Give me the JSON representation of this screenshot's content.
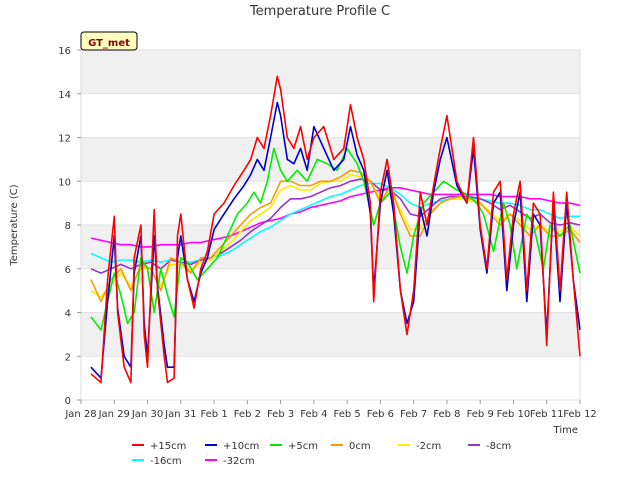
{
  "chart_data": {
    "type": "line",
    "title": "Temperature Profile C",
    "xlabel": "Time",
    "ylabel": "Temperature (C)",
    "site_badge": "GT_met",
    "ylim": [
      0,
      16
    ],
    "yticks": [
      0,
      2,
      4,
      6,
      8,
      10,
      12,
      14,
      16
    ],
    "xlim_days": [
      0,
      15
    ],
    "xtick_labels": [
      "Jan 28",
      "Jan 29",
      "Jan 30",
      "Jan 31",
      "Feb 1",
      "Feb 2",
      "Feb 3",
      "Feb 4",
      "Feb 5",
      "Feb 6",
      "Feb 7",
      "Feb 8",
      "Feb 9",
      "Feb 10",
      "Feb 11",
      "Feb 12"
    ],
    "grid": true,
    "legend_position": "bottom",
    "series": [
      {
        "name": "+15cm",
        "color": "#ff0000",
        "x": [
          0.3,
          0.6,
          0.8,
          1.0,
          1.1,
          1.3,
          1.5,
          1.6,
          1.8,
          1.9,
          2.0,
          2.2,
          2.3,
          2.5,
          2.6,
          2.8,
          2.9,
          3.0,
          3.2,
          3.4,
          3.6,
          3.8,
          4.0,
          4.3,
          4.6,
          4.9,
          5.1,
          5.3,
          5.5,
          5.7,
          5.9,
          6.0,
          6.2,
          6.4,
          6.6,
          6.8,
          7.0,
          7.3,
          7.6,
          7.9,
          8.1,
          8.3,
          8.5,
          8.7,
          8.8,
          9.0,
          9.2,
          9.4,
          9.6,
          9.8,
          10.0,
          10.2,
          10.4,
          10.6,
          10.8,
          11.0,
          11.3,
          11.6,
          11.8,
          12.0,
          12.2,
          12.4,
          12.6,
          12.8,
          13.0,
          13.2,
          13.4,
          13.6,
          13.8,
          14.0,
          14.2,
          14.4,
          14.6,
          14.8,
          15.0
        ],
        "y": [
          1.2,
          0.8,
          5.5,
          8.4,
          4.0,
          1.5,
          0.8,
          6.5,
          8.0,
          3.0,
          1.5,
          8.7,
          5.0,
          2.0,
          0.8,
          1.0,
          7.5,
          8.5,
          5.5,
          4.2,
          6.0,
          6.8,
          8.5,
          9.0,
          9.8,
          10.5,
          11.0,
          12.0,
          11.5,
          13.0,
          14.8,
          14.2,
          12.0,
          11.5,
          12.5,
          11.0,
          12.0,
          12.5,
          11.0,
          11.5,
          13.5,
          12.0,
          11.0,
          9.0,
          4.5,
          9.5,
          11.0,
          9.0,
          5.0,
          3.0,
          5.0,
          9.5,
          8.0,
          9.8,
          11.5,
          13.0,
          10.0,
          9.0,
          12.0,
          8.0,
          6.0,
          9.5,
          10.0,
          5.5,
          8.5,
          10.0,
          5.0,
          9.0,
          8.5,
          2.5,
          9.5,
          5.0,
          9.5,
          5.5,
          2.0
        ]
      },
      {
        "name": "+10cm",
        "color": "#0000cc",
        "x": [
          0.3,
          0.6,
          0.8,
          1.0,
          1.1,
          1.3,
          1.5,
          1.6,
          1.8,
          1.9,
          2.0,
          2.2,
          2.3,
          2.5,
          2.6,
          2.8,
          2.9,
          3.0,
          3.2,
          3.4,
          3.6,
          3.8,
          4.0,
          4.3,
          4.6,
          4.9,
          5.1,
          5.3,
          5.5,
          5.7,
          5.9,
          6.0,
          6.2,
          6.4,
          6.6,
          6.8,
          7.0,
          7.3,
          7.6,
          7.9,
          8.1,
          8.3,
          8.5,
          8.7,
          8.8,
          9.0,
          9.2,
          9.4,
          9.6,
          9.8,
          10.0,
          10.2,
          10.4,
          10.6,
          10.8,
          11.0,
          11.3,
          11.6,
          11.8,
          12.0,
          12.2,
          12.4,
          12.6,
          12.8,
          13.0,
          13.2,
          13.4,
          13.6,
          13.8,
          14.0,
          14.2,
          14.4,
          14.6,
          14.8,
          15.0
        ],
        "y": [
          1.5,
          1.0,
          4.5,
          7.5,
          4.2,
          2.0,
          1.5,
          5.8,
          7.5,
          3.5,
          2.0,
          7.5,
          5.2,
          2.5,
          1.5,
          1.5,
          6.5,
          7.5,
          5.5,
          4.5,
          5.8,
          6.5,
          7.8,
          8.5,
          9.2,
          9.8,
          10.3,
          11.0,
          10.5,
          12.0,
          13.6,
          13.0,
          11.0,
          10.8,
          11.5,
          10.5,
          12.5,
          11.5,
          10.5,
          11.0,
          12.5,
          11.2,
          10.5,
          8.5,
          5.0,
          9.0,
          10.5,
          8.5,
          5.0,
          3.5,
          4.5,
          8.8,
          7.5,
          9.5,
          11.0,
          12.0,
          9.8,
          9.0,
          11.5,
          7.8,
          5.8,
          9.0,
          9.5,
          5.0,
          8.0,
          9.5,
          4.5,
          8.5,
          8.0,
          3.0,
          9.0,
          4.5,
          9.0,
          5.5,
          3.2
        ]
      },
      {
        "name": "+5cm",
        "color": "#00ee00",
        "x": [
          0.3,
          0.6,
          0.8,
          1.0,
          1.2,
          1.4,
          1.6,
          1.8,
          2.0,
          2.2,
          2.4,
          2.6,
          2.8,
          3.0,
          3.2,
          3.5,
          3.8,
          4.1,
          4.4,
          4.7,
          5.0,
          5.2,
          5.4,
          5.6,
          5.8,
          6.0,
          6.2,
          6.5,
          6.8,
          7.1,
          7.4,
          7.7,
          8.0,
          8.3,
          8.5,
          8.8,
          9.0,
          9.3,
          9.6,
          9.8,
          10.0,
          10.3,
          10.6,
          10.9,
          11.1,
          11.3,
          11.6,
          11.9,
          12.1,
          12.4,
          12.7,
          12.9,
          13.1,
          13.4,
          13.6,
          13.9,
          14.1,
          14.4,
          14.7,
          15.0
        ],
        "y": [
          3.8,
          3.2,
          4.5,
          5.8,
          4.8,
          3.5,
          4.0,
          6.5,
          6.0,
          4.0,
          6.0,
          4.8,
          3.8,
          6.5,
          6.3,
          5.5,
          6.0,
          6.5,
          7.5,
          8.5,
          9.0,
          9.5,
          9.0,
          10.0,
          11.5,
          10.5,
          10.0,
          10.5,
          10.0,
          11.0,
          10.8,
          10.5,
          11.5,
          10.8,
          10.0,
          8.0,
          9.0,
          9.5,
          7.0,
          5.8,
          7.5,
          9.0,
          9.5,
          10.0,
          9.8,
          9.6,
          9.4,
          9.0,
          8.5,
          6.8,
          9.0,
          8.0,
          6.0,
          8.5,
          8.0,
          6.0,
          8.0,
          7.5,
          8.0,
          5.8
        ]
      },
      {
        "name": "0cm",
        "color": "#ff9900",
        "x": [
          0.3,
          0.6,
          0.9,
          1.2,
          1.5,
          1.8,
          2.1,
          2.4,
          2.7,
          3.0,
          3.3,
          3.6,
          3.9,
          4.2,
          4.5,
          4.8,
          5.1,
          5.4,
          5.7,
          6.0,
          6.3,
          6.6,
          6.9,
          7.2,
          7.5,
          7.8,
          8.1,
          8.4,
          8.7,
          9.0,
          9.3,
          9.6,
          9.9,
          10.2,
          10.5,
          10.8,
          11.1,
          11.4,
          11.7,
          12.0,
          12.3,
          12.6,
          12.9,
          13.2,
          13.5,
          13.8,
          14.1,
          14.4,
          14.7,
          15.0
        ],
        "y": [
          5.5,
          4.5,
          5.5,
          6.0,
          5.0,
          6.2,
          6.0,
          5.0,
          6.5,
          6.3,
          5.8,
          6.5,
          6.5,
          7.0,
          7.5,
          8.0,
          8.5,
          8.8,
          9.0,
          10.0,
          10.0,
          9.8,
          9.8,
          10.0,
          10.0,
          10.2,
          10.5,
          10.4,
          10.0,
          9.0,
          9.8,
          8.5,
          7.5,
          7.5,
          8.5,
          9.0,
          9.2,
          9.3,
          9.2,
          9.0,
          8.5,
          8.0,
          8.5,
          8.0,
          7.5,
          8.0,
          7.5,
          7.5,
          7.8,
          7.2
        ]
      },
      {
        "name": "-2cm",
        "color": "#ffee00",
        "x": [
          0.3,
          0.6,
          0.9,
          1.2,
          1.5,
          1.8,
          2.1,
          2.4,
          2.7,
          3.0,
          3.3,
          3.6,
          3.9,
          4.2,
          4.5,
          4.8,
          5.1,
          5.4,
          5.7,
          6.0,
          6.3,
          6.6,
          6.9,
          7.2,
          7.5,
          7.8,
          8.1,
          8.4,
          8.7,
          9.0,
          9.3,
          9.6,
          9.9,
          10.2,
          10.5,
          10.8,
          11.1,
          11.4,
          11.7,
          12.0,
          12.3,
          12.6,
          12.9,
          13.2,
          13.5,
          13.8,
          14.1,
          14.4,
          14.7,
          15.0
        ],
        "y": [
          5.0,
          4.7,
          5.3,
          5.8,
          5.2,
          6.0,
          6.0,
          5.2,
          6.2,
          6.2,
          5.9,
          6.3,
          6.4,
          6.8,
          7.2,
          7.7,
          8.2,
          8.5,
          8.8,
          9.6,
          9.8,
          9.6,
          9.6,
          9.9,
          10.0,
          10.0,
          10.3,
          10.2,
          10.0,
          9.2,
          9.6,
          8.7,
          7.8,
          7.8,
          8.6,
          9.0,
          9.2,
          9.2,
          9.1,
          9.0,
          8.6,
          8.2,
          8.5,
          8.2,
          7.8,
          8.0,
          7.7,
          7.7,
          7.9,
          7.5
        ]
      },
      {
        "name": "-8cm",
        "color": "#9933cc",
        "x": [
          0.3,
          0.6,
          0.9,
          1.2,
          1.5,
          1.8,
          2.1,
          2.4,
          2.7,
          3.0,
          3.3,
          3.6,
          3.9,
          4.2,
          4.5,
          4.8,
          5.1,
          5.4,
          5.7,
          6.0,
          6.3,
          6.6,
          6.9,
          7.2,
          7.5,
          7.8,
          8.1,
          8.4,
          8.7,
          9.0,
          9.3,
          9.6,
          9.9,
          10.2,
          10.5,
          10.8,
          11.1,
          11.4,
          11.7,
          12.0,
          12.3,
          12.6,
          12.9,
          13.2,
          13.5,
          13.8,
          14.1,
          14.4,
          14.7,
          15.0
        ],
        "y": [
          6.0,
          5.8,
          6.0,
          6.2,
          6.0,
          6.2,
          6.3,
          6.0,
          6.4,
          6.3,
          6.2,
          6.4,
          6.5,
          6.7,
          7.0,
          7.3,
          7.7,
          8.0,
          8.3,
          8.8,
          9.2,
          9.2,
          9.3,
          9.5,
          9.7,
          9.8,
          10.0,
          10.1,
          10.0,
          9.6,
          9.6,
          9.2,
          8.5,
          8.4,
          8.8,
          9.2,
          9.3,
          9.3,
          9.3,
          9.2,
          9.0,
          8.7,
          8.9,
          8.6,
          8.3,
          8.5,
          8.1,
          8.0,
          8.1,
          8.0
        ]
      },
      {
        "name": "-16cm",
        "color": "#00ffff",
        "x": [
          0.3,
          0.6,
          0.9,
          1.2,
          1.5,
          1.8,
          2.1,
          2.4,
          2.7,
          3.0,
          3.3,
          3.6,
          3.9,
          4.2,
          4.5,
          4.8,
          5.1,
          5.4,
          5.7,
          6.0,
          6.3,
          6.6,
          6.9,
          7.2,
          7.5,
          7.8,
          8.1,
          8.4,
          8.7,
          9.0,
          9.3,
          9.6,
          9.9,
          10.2,
          10.5,
          10.8,
          11.1,
          11.4,
          11.7,
          12.0,
          12.3,
          12.6,
          12.9,
          13.2,
          13.5,
          13.8,
          14.1,
          14.4,
          14.7,
          15.0
        ],
        "y": [
          6.7,
          6.5,
          6.3,
          6.4,
          6.4,
          6.3,
          6.4,
          6.3,
          6.4,
          6.3,
          6.3,
          6.4,
          6.5,
          6.6,
          6.8,
          7.1,
          7.4,
          7.7,
          7.9,
          8.2,
          8.5,
          8.7,
          8.9,
          9.1,
          9.3,
          9.4,
          9.6,
          9.8,
          9.9,
          9.9,
          9.7,
          9.4,
          9.0,
          8.8,
          9.0,
          9.1,
          9.2,
          9.2,
          9.2,
          9.2,
          9.1,
          9.0,
          9.0,
          8.9,
          8.7,
          8.7,
          8.5,
          8.3,
          8.4,
          8.4
        ]
      },
      {
        "name": "-32cm",
        "color": "#ff00ff",
        "x": [
          0.3,
          0.6,
          0.9,
          1.2,
          1.5,
          1.8,
          2.1,
          2.4,
          2.7,
          3.0,
          3.3,
          3.6,
          3.9,
          4.2,
          4.5,
          4.8,
          5.1,
          5.4,
          5.7,
          6.0,
          6.3,
          6.6,
          6.9,
          7.2,
          7.5,
          7.8,
          8.1,
          8.4,
          8.7,
          9.0,
          9.3,
          9.6,
          9.9,
          10.2,
          10.5,
          10.8,
          11.1,
          11.4,
          11.7,
          12.0,
          12.3,
          12.6,
          12.9,
          13.2,
          13.5,
          13.8,
          14.1,
          14.4,
          14.7,
          15.0
        ],
        "y": [
          7.4,
          7.3,
          7.2,
          7.1,
          7.1,
          7.0,
          7.0,
          7.1,
          7.1,
          7.1,
          7.2,
          7.2,
          7.3,
          7.4,
          7.5,
          7.7,
          7.9,
          8.1,
          8.2,
          8.3,
          8.5,
          8.6,
          8.8,
          8.9,
          9.0,
          9.1,
          9.3,
          9.4,
          9.5,
          9.6,
          9.7,
          9.7,
          9.6,
          9.5,
          9.4,
          9.4,
          9.4,
          9.4,
          9.4,
          9.4,
          9.4,
          9.3,
          9.3,
          9.3,
          9.2,
          9.2,
          9.1,
          9.0,
          9.0,
          8.9
        ]
      }
    ]
  }
}
